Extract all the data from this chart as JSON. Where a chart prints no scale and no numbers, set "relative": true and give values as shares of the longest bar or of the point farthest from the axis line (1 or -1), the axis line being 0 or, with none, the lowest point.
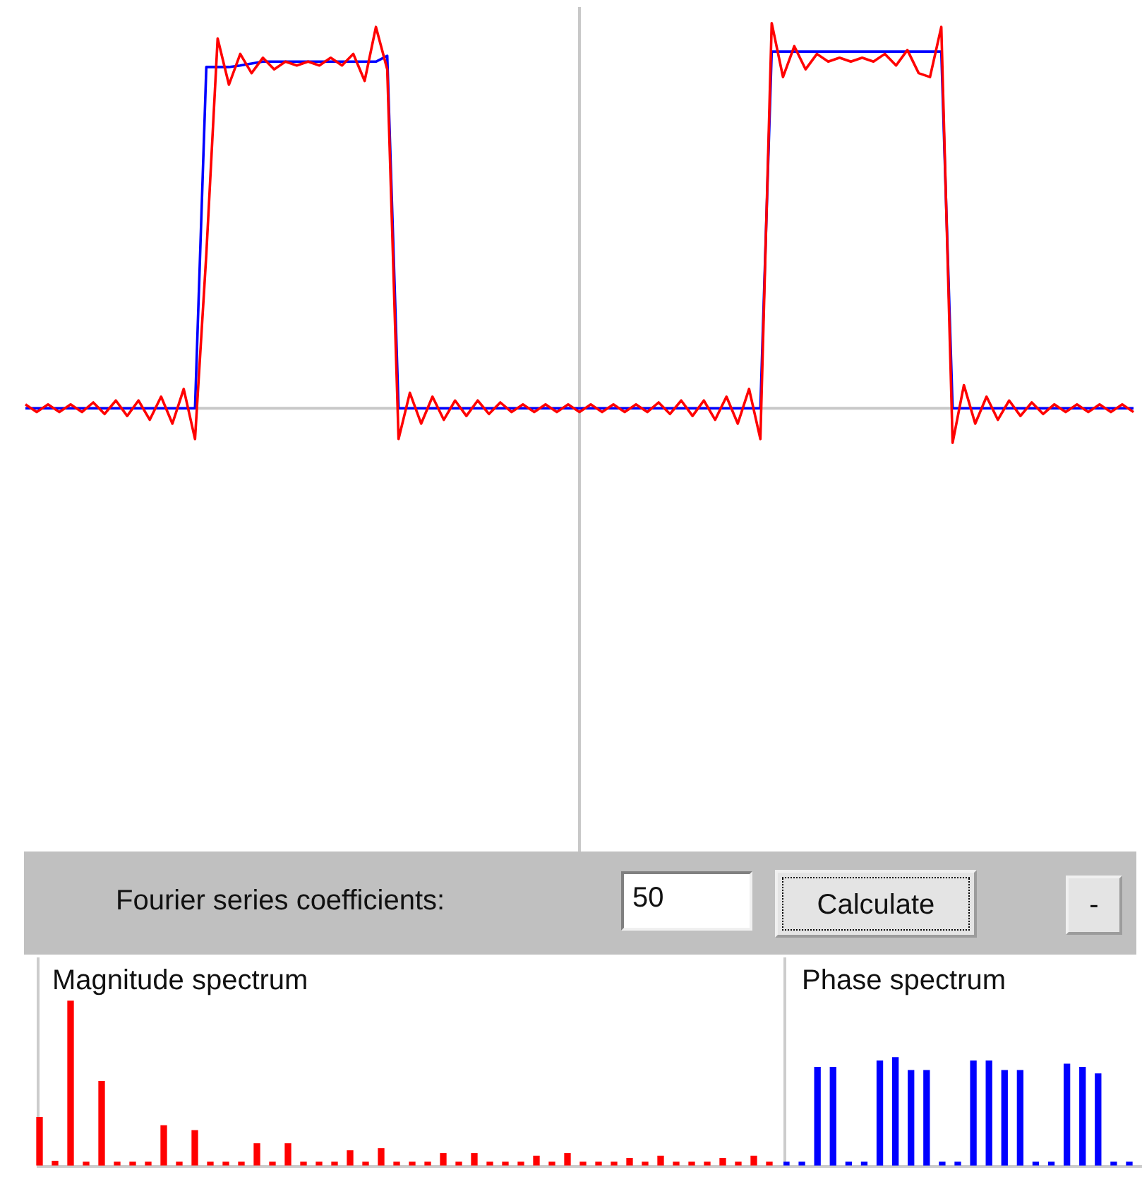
{
  "chart_data": [
    {
      "type": "line",
      "relative": true,
      "marker": "none",
      "line_style": "solid",
      "categories": [
        null,
        null,
        null,
        null,
        null,
        null,
        null,
        null,
        null,
        null,
        null,
        null,
        null,
        null,
        null,
        null,
        null,
        null,
        null,
        null,
        null,
        null,
        null,
        null,
        null,
        null,
        null,
        null,
        null,
        null,
        null,
        null,
        null,
        null,
        null,
        null,
        null,
        null,
        null,
        null,
        null,
        null,
        null,
        null,
        null,
        null,
        null,
        null,
        null,
        null,
        null,
        null,
        null,
        null,
        null,
        null,
        null,
        null,
        null,
        null,
        null,
        null,
        null,
        null,
        null,
        null,
        null,
        null,
        null,
        null,
        null,
        null,
        null,
        null,
        null,
        null,
        null,
        null,
        null,
        null,
        null,
        null,
        null,
        null,
        null,
        null,
        null,
        null,
        null,
        null,
        null,
        null,
        null,
        null,
        null,
        null,
        null,
        null,
        null
      ],
      "series": [
        {
          "color": "#ff0000",
          "values": [
            0.01,
            -0.01,
            0.01,
            -0.01,
            0.01,
            -0.01,
            0.015,
            -0.015,
            0.02,
            -0.02,
            0.02,
            -0.03,
            0.03,
            -0.04,
            0.05,
            -0.08,
            0.4,
            0.96,
            0.84,
            0.92,
            0.87,
            0.91,
            0.88,
            0.9,
            0.89,
            0.9,
            0.89,
            0.91,
            0.89,
            0.92,
            0.85,
            0.99,
            0.88,
            -0.08,
            0.04,
            -0.04,
            0.03,
            -0.03,
            0.02,
            -0.02,
            0.02,
            -0.015,
            0.015,
            -0.01,
            0.01,
            -0.01,
            0.01,
            -0.01,
            0.01,
            -0.01,
            0.01,
            -0.01,
            0.01,
            -0.01,
            0.01,
            -0.01,
            0.015,
            -0.015,
            0.02,
            -0.02,
            0.02,
            -0.03,
            0.03,
            -0.04,
            0.05,
            -0.08,
            1,
            0.86,
            0.94,
            0.88,
            0.92,
            0.9,
            0.91,
            0.9,
            0.91,
            0.9,
            0.92,
            0.89,
            0.93,
            0.87,
            0.86,
            0.99,
            -0.09,
            0.06,
            -0.04,
            0.03,
            -0.03,
            0.02,
            -0.02,
            0.015,
            -0.015,
            0.01,
            -0.01,
            0.01,
            -0.01,
            0.01,
            -0.01,
            0.01,
            -0.01
          ]
        },
        {
          "color": "#0000ff",
          "values": [
            0,
            0,
            0,
            0,
            0,
            0,
            0,
            0,
            0,
            0,
            0,
            0,
            0,
            0,
            0,
            0,
            0.886,
            0.886,
            0.886,
            0.89,
            0.895,
            0.9,
            0.9,
            0.9,
            0.9,
            0.9,
            0.9,
            0.9,
            0.9,
            0.9,
            0.9,
            0.9,
            0.915,
            0,
            0,
            0,
            0,
            0,
            0,
            0,
            0,
            0,
            0,
            0,
            0,
            0,
            0,
            0,
            0,
            0,
            0,
            0,
            0,
            0,
            0,
            0,
            0,
            0,
            0,
            0,
            0,
            0,
            0,
            0,
            0,
            0,
            0.926,
            0.926,
            0.926,
            0.926,
            0.926,
            0.926,
            0.926,
            0.926,
            0.926,
            0.926,
            0.926,
            0.926,
            0.926,
            0.926,
            0.926,
            0.926,
            0,
            0,
            0,
            0,
            0,
            0,
            0,
            0,
            0,
            0,
            0,
            0,
            0,
            0,
            0,
            0,
            0
          ]
        }
      ]
    },
    {
      "type": "other",
      "annotations": [
        "Fourier series coefficients:",
        "50",
        "Calculate",
        "-"
      ]
    },
    {
      "type": "bar",
      "relative": true,
      "title": "Magnitude spectrum",
      "color": "#ff0000",
      "categories": [
        null,
        null,
        null,
        null,
        null,
        null,
        null,
        null,
        null,
        null,
        null,
        null,
        null,
        null,
        null,
        null,
        null,
        null,
        null,
        null,
        null,
        null,
        null,
        null,
        null,
        null,
        null,
        null,
        null,
        null,
        null,
        null,
        null,
        null,
        null,
        null,
        null,
        null,
        null,
        null,
        null,
        null,
        null,
        null,
        null,
        null,
        null,
        null
      ],
      "values": [
        0.29,
        0.023,
        1,
        0,
        0.51,
        0,
        0,
        0,
        0.24,
        0,
        0.21,
        0,
        0,
        0,
        0.13,
        0,
        0.13,
        0,
        0,
        0,
        0.087,
        0,
        0.1,
        0,
        0,
        0,
        0.07,
        0,
        0.07,
        0,
        0,
        0,
        0.054,
        0,
        0.07,
        0,
        0,
        0,
        0.04,
        0,
        0.054,
        0,
        0,
        0,
        0.04,
        0,
        0.054,
        0
      ]
    },
    {
      "type": "bar",
      "relative": true,
      "title": "Phase spectrum",
      "color": "#0000ff",
      "categories": [
        null,
        null,
        null,
        null,
        null,
        null,
        null,
        null,
        null,
        null,
        null,
        null,
        null,
        null,
        null,
        null,
        null,
        null,
        null,
        null,
        null,
        null,
        null
      ],
      "values": [
        0,
        0,
        0.91,
        0.91,
        0,
        0,
        0.97,
        1,
        0.88,
        0.88,
        0,
        0,
        0.97,
        0.97,
        0.88,
        0.88,
        0,
        0,
        0.94,
        0.91,
        0.85,
        0,
        0
      ]
    }
  ]
}
